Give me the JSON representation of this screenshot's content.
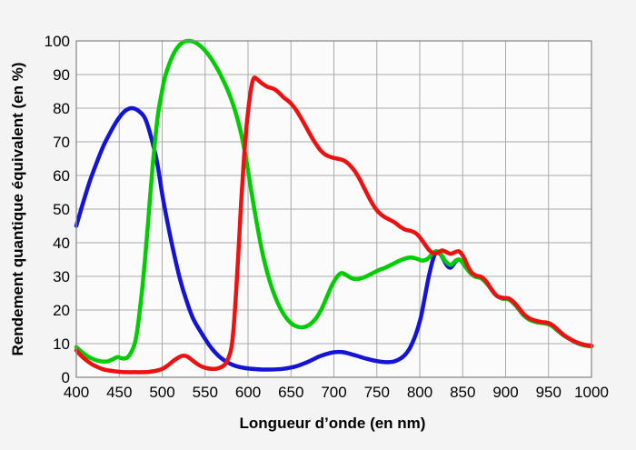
{
  "chart_data": {
    "type": "line",
    "title": "",
    "xlabel": "Longueur d’onde (en nm)",
    "ylabel": "Rendement quantique équivalent (en %)",
    "xlim": [
      400,
      1000
    ],
    "ylim": [
      0,
      100
    ],
    "x_ticks": [
      400,
      450,
      500,
      550,
      600,
      650,
      700,
      750,
      800,
      850,
      900,
      950,
      1000
    ],
    "y_ticks": [
      0,
      10,
      20,
      30,
      40,
      50,
      60,
      70,
      80,
      90,
      100
    ],
    "grid": true,
    "legend_position": "none",
    "series": [
      {
        "name": "blue",
        "color": "#1414d8",
        "points": [
          [
            400,
            45
          ],
          [
            408,
            52
          ],
          [
            416,
            58.5
          ],
          [
            424,
            64
          ],
          [
            432,
            69
          ],
          [
            440,
            73
          ],
          [
            448,
            76.5
          ],
          [
            456,
            79
          ],
          [
            464,
            80
          ],
          [
            472,
            79.3
          ],
          [
            480,
            77
          ],
          [
            487,
            71.5
          ],
          [
            494,
            64
          ],
          [
            500,
            54.5
          ],
          [
            507,
            45
          ],
          [
            514,
            36.5
          ],
          [
            521,
            29
          ],
          [
            528,
            23
          ],
          [
            536,
            17.5
          ],
          [
            545,
            13.5
          ],
          [
            555,
            9.5
          ],
          [
            565,
            6.5
          ],
          [
            575,
            4.6
          ],
          [
            585,
            3.4
          ],
          [
            595,
            2.8
          ],
          [
            610,
            2.4
          ],
          [
            625,
            2.3
          ],
          [
            640,
            2.5
          ],
          [
            655,
            3.2
          ],
          [
            670,
            4.6
          ],
          [
            683,
            6.2
          ],
          [
            695,
            7.2
          ],
          [
            703,
            7.5
          ],
          [
            712,
            7.4
          ],
          [
            725,
            6.5
          ],
          [
            738,
            5.5
          ],
          [
            750,
            4.8
          ],
          [
            760,
            4.5
          ],
          [
            770,
            4.7
          ],
          [
            780,
            6
          ],
          [
            788,
            8.5
          ],
          [
            795,
            12.5
          ],
          [
            801,
            17.5
          ],
          [
            806,
            24
          ],
          [
            811,
            30.5
          ],
          [
            816,
            35.5
          ],
          [
            820,
            37.3
          ],
          [
            825,
            36.3
          ],
          [
            831,
            33.5
          ],
          [
            836,
            32.6
          ],
          [
            842,
            34.5
          ],
          [
            847,
            34.9
          ],
          [
            852,
            33.3
          ],
          [
            858,
            31.3
          ],
          [
            864,
            30
          ],
          [
            872,
            29.4
          ],
          [
            880,
            27.3
          ],
          [
            888,
            24.6
          ],
          [
            896,
            23.4
          ],
          [
            904,
            23.1
          ],
          [
            912,
            21.3
          ],
          [
            920,
            18.7
          ],
          [
            928,
            17.1
          ],
          [
            936,
            16.4
          ],
          [
            944,
            16.1
          ],
          [
            952,
            15.6
          ],
          [
            960,
            14
          ],
          [
            968,
            12.4
          ],
          [
            976,
            11.2
          ],
          [
            984,
            10.1
          ],
          [
            992,
            9.5
          ],
          [
            1000,
            9.2
          ]
        ]
      },
      {
        "name": "green",
        "color": "#00cd00",
        "points": [
          [
            400,
            9
          ],
          [
            406,
            7.6
          ],
          [
            412,
            6.4
          ],
          [
            418,
            5.6
          ],
          [
            424,
            5
          ],
          [
            430,
            4.7
          ],
          [
            436,
            4.7
          ],
          [
            442,
            5.3
          ],
          [
            448,
            6
          ],
          [
            452,
            5.7
          ],
          [
            456,
            5.6
          ],
          [
            460,
            6
          ],
          [
            464,
            7.5
          ],
          [
            468,
            10
          ],
          [
            471,
            14
          ],
          [
            474,
            20
          ],
          [
            477,
            27
          ],
          [
            480,
            35
          ],
          [
            483,
            44
          ],
          [
            486,
            54
          ],
          [
            489,
            63
          ],
          [
            492,
            71
          ],
          [
            495,
            78
          ],
          [
            499,
            84
          ],
          [
            503,
            89
          ],
          [
            508,
            93
          ],
          [
            514,
            96.5
          ],
          [
            520,
            98.7
          ],
          [
            526,
            99.8
          ],
          [
            532,
            100
          ],
          [
            538,
            99.6
          ],
          [
            544,
            98.6
          ],
          [
            551,
            96.8
          ],
          [
            558,
            94.4
          ],
          [
            565,
            91.4
          ],
          [
            572,
            87.8
          ],
          [
            578,
            84.3
          ],
          [
            584,
            80
          ],
          [
            589,
            75.5
          ],
          [
            594,
            70
          ],
          [
            599,
            63
          ],
          [
            604,
            55
          ],
          [
            609,
            47.5
          ],
          [
            614,
            40.5
          ],
          [
            619,
            34.5
          ],
          [
            625,
            28.8
          ],
          [
            631,
            24.3
          ],
          [
            637,
            20.8
          ],
          [
            644,
            17.8
          ],
          [
            651,
            15.9
          ],
          [
            658,
            15
          ],
          [
            665,
            14.9
          ],
          [
            672,
            15.7
          ],
          [
            679,
            17.5
          ],
          [
            686,
            20.5
          ],
          [
            692,
            24
          ],
          [
            698,
            27.5
          ],
          [
            704,
            30
          ],
          [
            709,
            31
          ],
          [
            715,
            30.3
          ],
          [
            721,
            29.4
          ],
          [
            728,
            29.2
          ],
          [
            736,
            29.8
          ],
          [
            744,
            30.8
          ],
          [
            752,
            31.8
          ],
          [
            760,
            32.6
          ],
          [
            768,
            33.6
          ],
          [
            776,
            34.6
          ],
          [
            783,
            35.3
          ],
          [
            790,
            35.6
          ],
          [
            797,
            35.2
          ],
          [
            803,
            34.7
          ],
          [
            809,
            35.2
          ],
          [
            814,
            36.5
          ],
          [
            819,
            37.5
          ],
          [
            824,
            36.8
          ],
          [
            830,
            34.5
          ],
          [
            836,
            33.4
          ],
          [
            842,
            34.7
          ],
          [
            847,
            34.9
          ],
          [
            852,
            33.3
          ],
          [
            858,
            31.3
          ],
          [
            864,
            30
          ],
          [
            872,
            29.4
          ],
          [
            880,
            27.3
          ],
          [
            888,
            24.6
          ],
          [
            896,
            23.4
          ],
          [
            904,
            23.1
          ],
          [
            912,
            21.3
          ],
          [
            920,
            18.7
          ],
          [
            928,
            17.1
          ],
          [
            936,
            16.4
          ],
          [
            944,
            16.1
          ],
          [
            952,
            15.6
          ],
          [
            960,
            14
          ],
          [
            968,
            12.4
          ],
          [
            976,
            11.2
          ],
          [
            984,
            10.1
          ],
          [
            992,
            9.5
          ],
          [
            1000,
            9.2
          ]
        ]
      },
      {
        "name": "red",
        "color": "#ee1111",
        "points": [
          [
            400,
            8
          ],
          [
            406,
            6.3
          ],
          [
            412,
            5
          ],
          [
            418,
            3.9
          ],
          [
            424,
            3.1
          ],
          [
            430,
            2.5
          ],
          [
            436,
            2.1
          ],
          [
            444,
            1.8
          ],
          [
            452,
            1.6
          ],
          [
            460,
            1.5
          ],
          [
            468,
            1.5
          ],
          [
            476,
            1.5
          ],
          [
            484,
            1.6
          ],
          [
            492,
            1.9
          ],
          [
            500,
            2.5
          ],
          [
            507,
            3.6
          ],
          [
            513,
            4.9
          ],
          [
            519,
            5.9
          ],
          [
            524,
            6.4
          ],
          [
            529,
            6.2
          ],
          [
            534,
            5.3
          ],
          [
            540,
            4.1
          ],
          [
            546,
            3.2
          ],
          [
            552,
            2.7
          ],
          [
            558,
            2.5
          ],
          [
            564,
            2.6
          ],
          [
            570,
            3.2
          ],
          [
            575,
            4.5
          ],
          [
            580,
            8
          ],
          [
            583,
            14
          ],
          [
            586,
            25
          ],
          [
            589,
            38
          ],
          [
            592,
            52
          ],
          [
            595,
            64
          ],
          [
            598,
            74
          ],
          [
            601,
            81
          ],
          [
            604,
            86.5
          ],
          [
            607,
            89
          ],
          [
            611,
            88.5
          ],
          [
            615,
            87.6
          ],
          [
            619,
            86.9
          ],
          [
            623,
            86.3
          ],
          [
            627,
            86
          ],
          [
            631,
            85.6
          ],
          [
            636,
            84.6
          ],
          [
            641,
            83.3
          ],
          [
            646,
            82.3
          ],
          [
            650,
            81.4
          ],
          [
            655,
            79.8
          ],
          [
            660,
            77.8
          ],
          [
            665,
            75.6
          ],
          [
            670,
            73.3
          ],
          [
            675,
            71
          ],
          [
            680,
            69
          ],
          [
            685,
            67.3
          ],
          [
            690,
            66.2
          ],
          [
            695,
            65.6
          ],
          [
            700,
            65.2
          ],
          [
            706,
            64.9
          ],
          [
            712,
            64.4
          ],
          [
            718,
            63.2
          ],
          [
            724,
            61.4
          ],
          [
            730,
            58.9
          ],
          [
            736,
            55.9
          ],
          [
            742,
            52.9
          ],
          [
            748,
            50.3
          ],
          [
            754,
            48.6
          ],
          [
            760,
            47.5
          ],
          [
            766,
            46.7
          ],
          [
            772,
            45.8
          ],
          [
            778,
            44.6
          ],
          [
            784,
            43.8
          ],
          [
            790,
            43.5
          ],
          [
            796,
            42.7
          ],
          [
            801,
            41.3
          ],
          [
            806,
            39.5
          ],
          [
            811,
            37.8
          ],
          [
            816,
            36.8
          ],
          [
            821,
            37
          ],
          [
            826,
            37.7
          ],
          [
            831,
            37.2
          ],
          [
            836,
            36.7
          ],
          [
            841,
            37.2
          ],
          [
            846,
            37.4
          ],
          [
            851,
            35.8
          ],
          [
            856,
            33
          ],
          [
            861,
            31
          ],
          [
            866,
            30.2
          ],
          [
            872,
            29.8
          ],
          [
            878,
            28.3
          ],
          [
            884,
            26
          ],
          [
            890,
            24.2
          ],
          [
            897,
            23.6
          ],
          [
            904,
            23.4
          ],
          [
            910,
            22.2
          ],
          [
            916,
            20.4
          ],
          [
            922,
            18.6
          ],
          [
            928,
            17.5
          ],
          [
            935,
            16.8
          ],
          [
            942,
            16.4
          ],
          [
            949,
            16.2
          ],
          [
            955,
            15.4
          ],
          [
            961,
            14.1
          ],
          [
            967,
            12.7
          ],
          [
            973,
            11.7
          ],
          [
            980,
            10.7
          ],
          [
            987,
            10
          ],
          [
            993,
            9.6
          ],
          [
            1000,
            9.4
          ]
        ]
      }
    ]
  },
  "colors": {
    "background": "#f4f4f4",
    "plot_background": "#fbfbfb",
    "gridline": "#a9a9a9",
    "plot_border": "#8c8c8c",
    "text": "#000000"
  }
}
